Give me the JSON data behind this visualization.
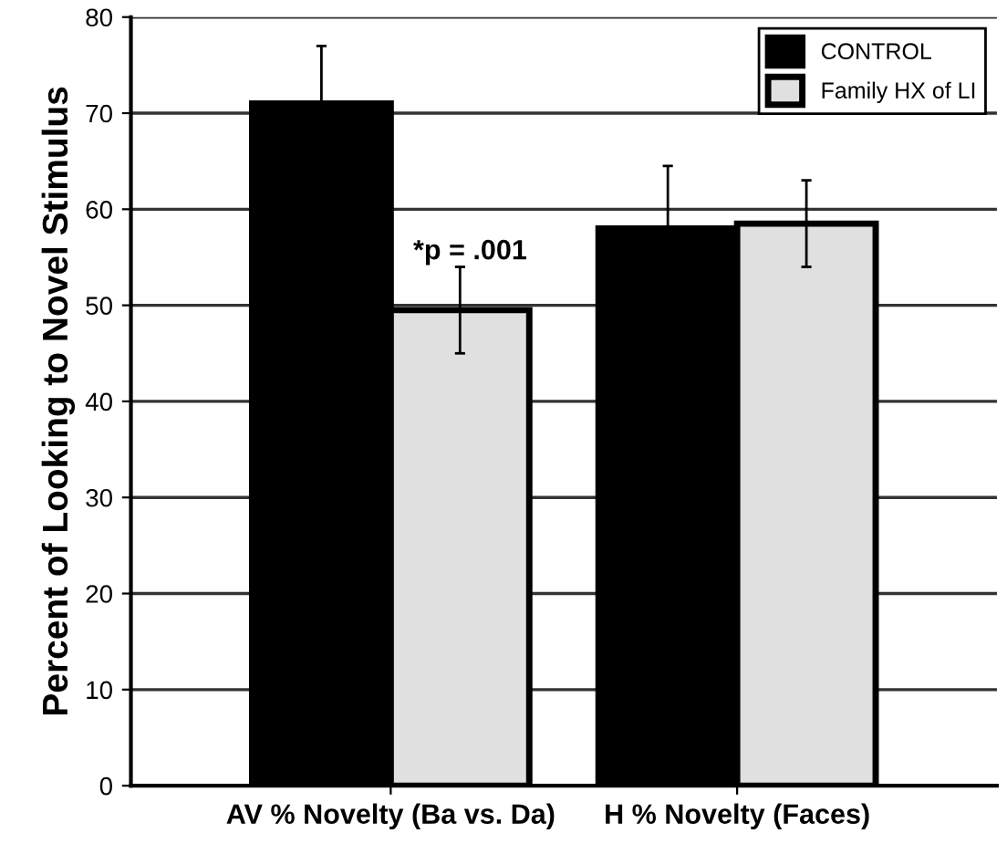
{
  "chart_data": {
    "type": "bar",
    "ylabel": "Percent of Looking to Novel Stimulus",
    "categories": [
      "AV % Novelty (Ba vs. Da)",
      "H % Novelty (Faces)"
    ],
    "series": [
      {
        "name": "CONTROL",
        "color": "#000000",
        "values": [
          71,
          58
        ],
        "errors": [
          6,
          6.5
        ]
      },
      {
        "name": "Family HX of LI",
        "color": "#e0e0e0",
        "values": [
          49.5,
          58.5
        ],
        "errors": [
          4.5,
          4.5
        ]
      }
    ],
    "annotations": [
      "*p = .001"
    ],
    "ylim": [
      0,
      80
    ],
    "yticks": [
      0,
      10,
      20,
      30,
      40,
      50,
      60,
      70,
      80
    ],
    "grid": "y",
    "legend": "top right"
  }
}
